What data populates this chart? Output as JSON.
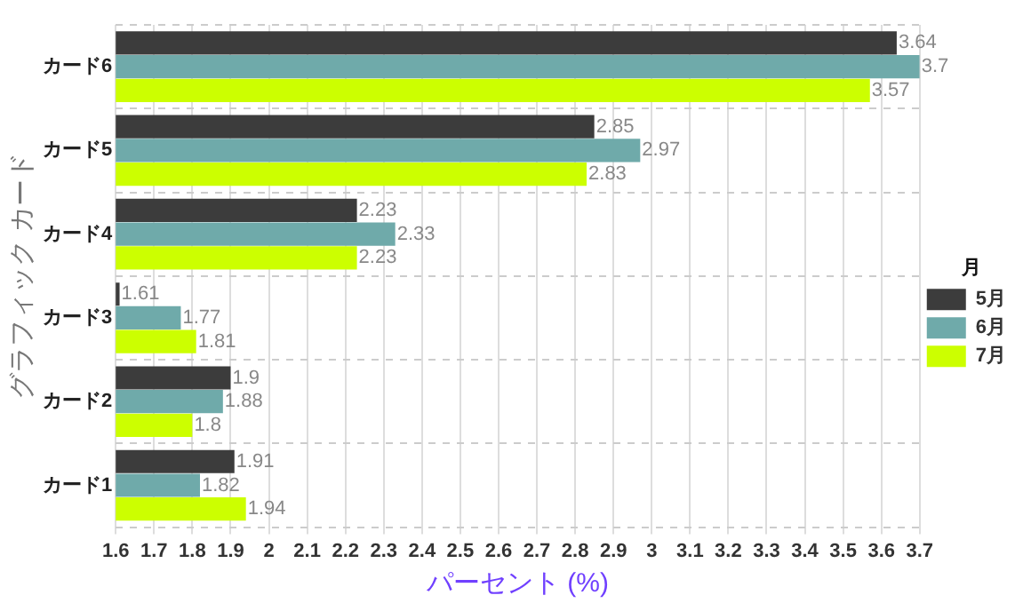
{
  "chart_data": {
    "type": "bar",
    "orientation": "horizontal",
    "xlabel": "パーセント (%)",
    "ylabel": "グラフィック カード",
    "legend_title": "月",
    "categories": [
      "カード6",
      "カード5",
      "カード4",
      "カード3",
      "カード2",
      "カード1"
    ],
    "series": [
      {
        "name": "5月",
        "color": "#3c3c3c",
        "values": [
          3.64,
          2.85,
          2.23,
          1.61,
          1.9,
          1.91
        ]
      },
      {
        "name": "6月",
        "color": "#6faaaa",
        "values": [
          3.7,
          2.97,
          2.33,
          1.77,
          1.88,
          1.82
        ]
      },
      {
        "name": "7月",
        "color": "#ccff00",
        "values": [
          3.57,
          2.83,
          2.23,
          1.81,
          1.8,
          1.94
        ]
      }
    ],
    "xlim": [
      1.6,
      3.7
    ],
    "xticks": [
      1.6,
      1.7,
      1.8,
      1.9,
      2,
      2.1,
      2.2,
      2.3,
      2.4,
      2.5,
      2.6,
      2.7,
      2.8,
      2.9,
      3,
      3.1,
      3.2,
      3.3,
      3.4,
      3.5,
      3.6,
      3.7
    ],
    "grid": true,
    "legend": "right",
    "data_labels": true
  }
}
